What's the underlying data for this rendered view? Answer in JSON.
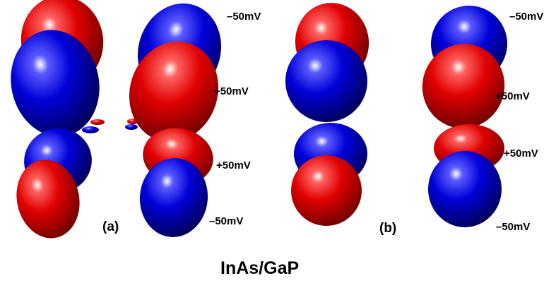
{
  "labels": {
    "a_top_right": "–50mV",
    "a_mid_upper": "+50mV",
    "a_mid_lower": "+50mV",
    "a_bottom": "–50mV",
    "b_top": "–50mV",
    "b_mid_upper": "+50mV",
    "b_mid_lower": "+50mV",
    "b_bottom": "–50mV",
    "panel_a": "(a)",
    "panel_b": "(b)",
    "title": "InAs/GaP"
  },
  "colors": {
    "positive_lobe": "#cc0000",
    "negative_lobe": "#0a0ac0",
    "background": "#ffffff"
  }
}
